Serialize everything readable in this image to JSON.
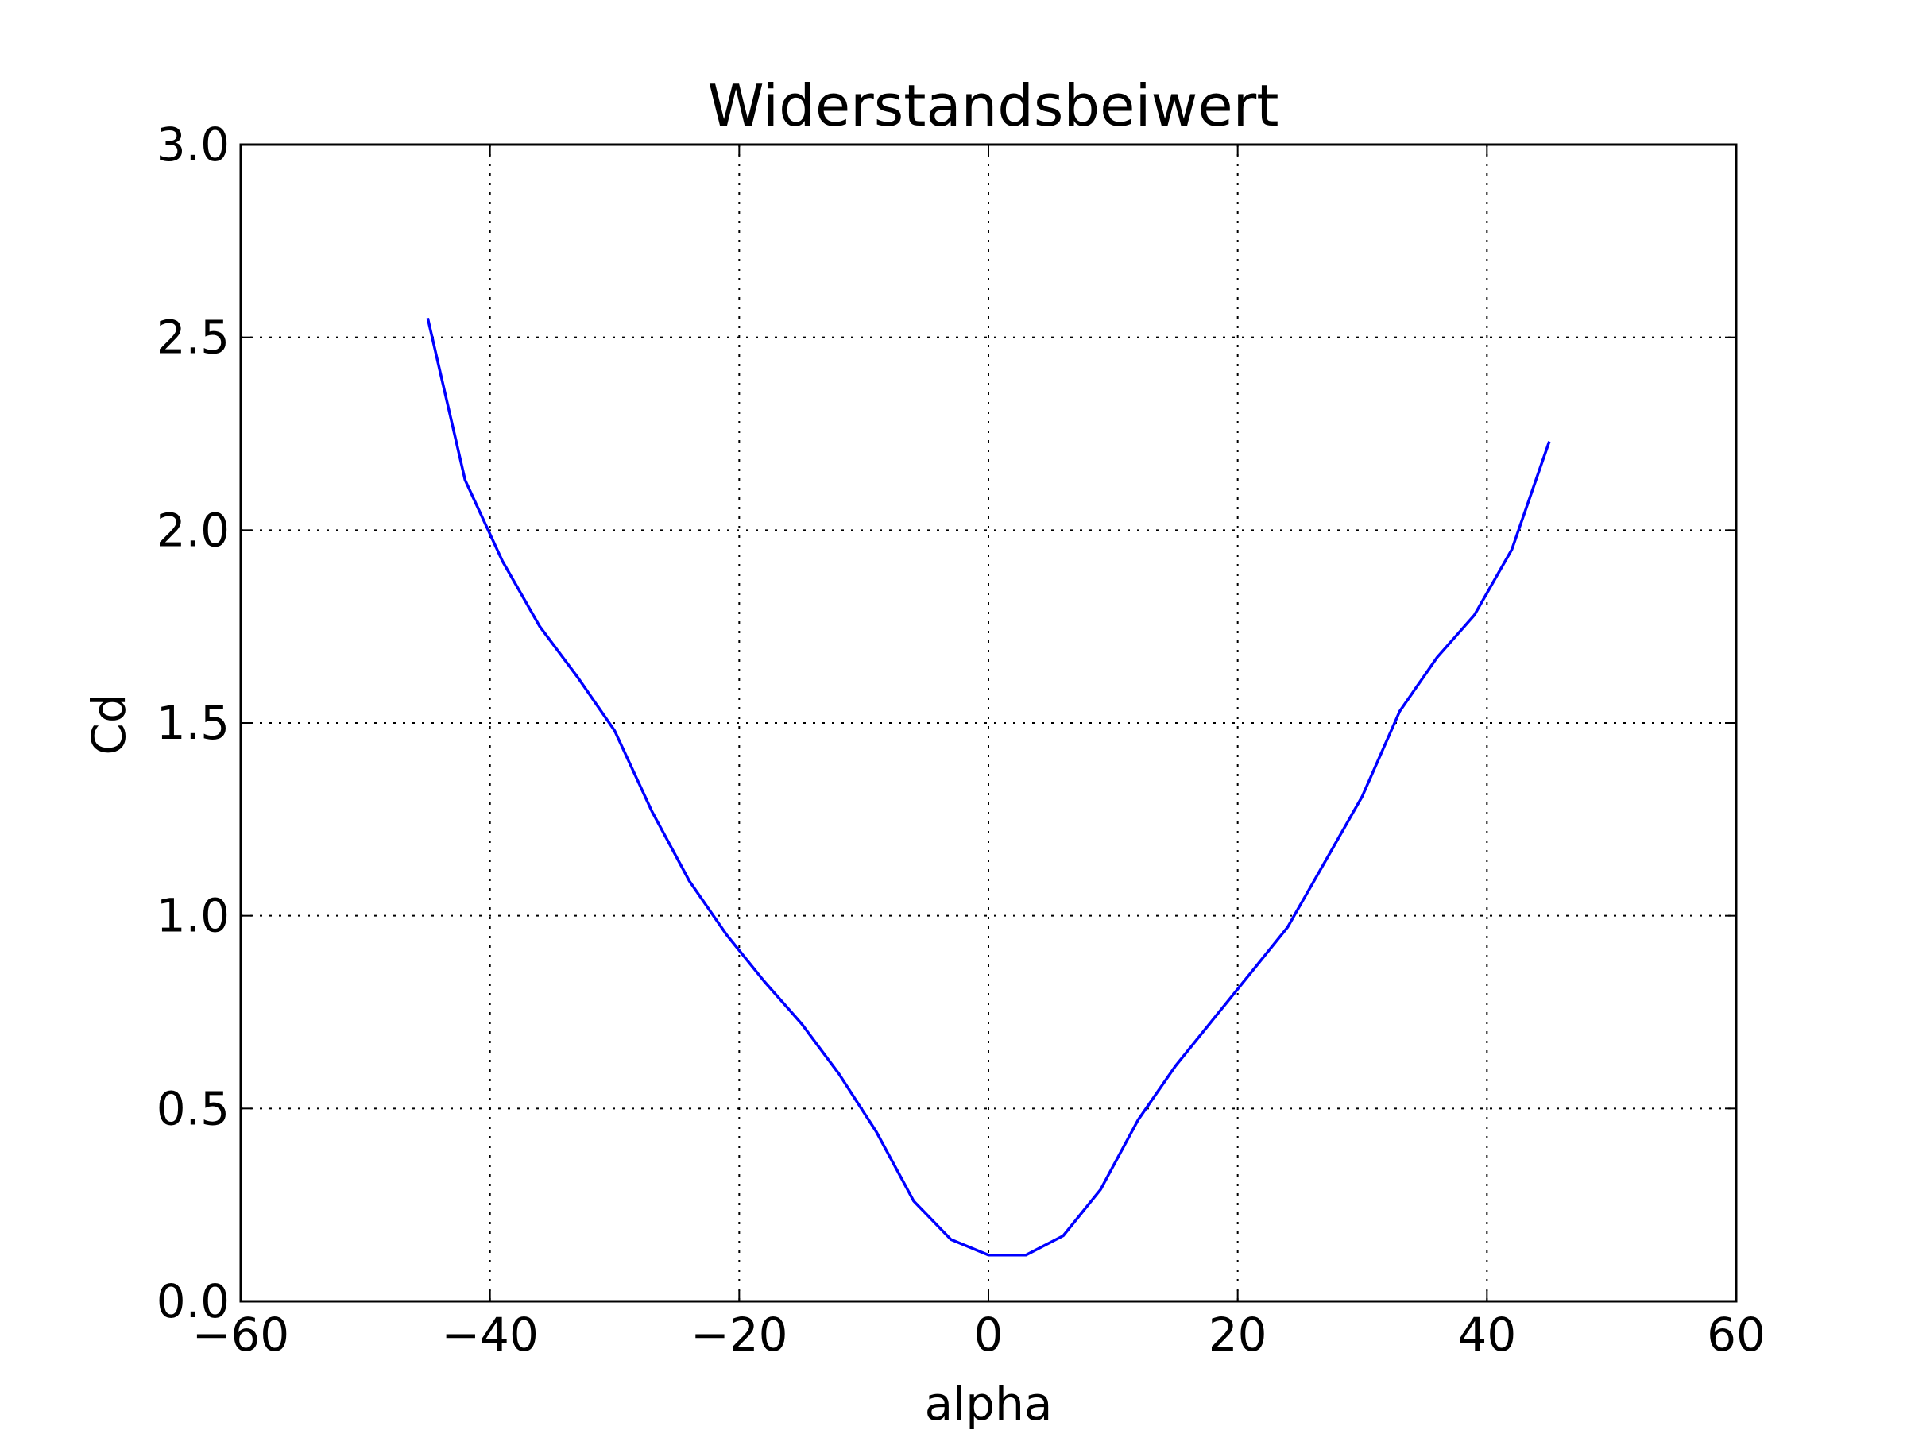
{
  "chart_data": {
    "type": "line",
    "title": "Widerstandsbeiwert",
    "xlabel": "alpha",
    "ylabel": "Cd",
    "xlim": [
      -60,
      60
    ],
    "ylim": [
      0.0,
      3.0
    ],
    "xticks": [
      -60,
      -40,
      -20,
      0,
      20,
      40,
      60
    ],
    "xtick_labels": [
      "−60",
      "−40",
      "−20",
      "0",
      "20",
      "40",
      "60"
    ],
    "yticks": [
      0.0,
      0.5,
      1.0,
      1.5,
      2.0,
      2.5,
      3.0
    ],
    "ytick_labels": [
      "0.0",
      "0.5",
      "1.0",
      "1.5",
      "2.0",
      "2.5",
      "3.0"
    ],
    "grid": true,
    "series": [
      {
        "color": "#0000ff",
        "x": [
          -45,
          -42,
          -39,
          -36,
          -33,
          -30,
          -27,
          -24,
          -21,
          -18,
          -15,
          -12,
          -9,
          -6,
          -3,
          0,
          3,
          6,
          9,
          12,
          15,
          18,
          21,
          24,
          27,
          30,
          33,
          36,
          39,
          42,
          45
        ],
        "y": [
          2.55,
          2.13,
          1.92,
          1.75,
          1.62,
          1.48,
          1.27,
          1.09,
          0.95,
          0.83,
          0.72,
          0.59,
          0.44,
          0.26,
          0.16,
          0.12,
          0.12,
          0.17,
          0.29,
          0.47,
          0.61,
          0.73,
          0.85,
          0.97,
          1.14,
          1.31,
          1.53,
          1.67,
          1.78,
          1.95,
          2.23
        ]
      }
    ]
  }
}
